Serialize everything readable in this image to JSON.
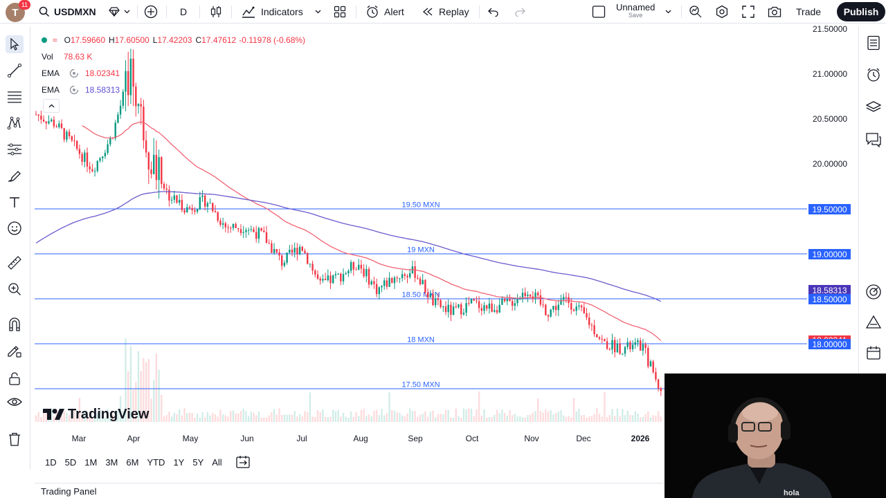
{
  "topbar": {
    "avatar_letter": "T",
    "notification_count": "11",
    "symbol": "USDMXN",
    "interval": "D",
    "indicators_label": "Indicators",
    "alert_label": "Alert",
    "replay_label": "Replay",
    "layout_name": "Unnamed",
    "save_label": "Save",
    "trade_label": "Trade",
    "publish_label": "Publish"
  },
  "legend": {
    "o_label": "O",
    "o": "17.59660",
    "h_label": "H",
    "h": "17.60500",
    "l_label": "L",
    "l": "17.42203",
    "c_label": "C",
    "c": "17.47612",
    "change": "-0.11978 (-0.68%)",
    "vol_label": "Vol",
    "vol": "78.63 K",
    "ema1_label": "EMA",
    "ema1": "18.02341",
    "ema2_label": "EMA",
    "ema2": "18.58313"
  },
  "price_axis": {
    "ticks": [
      "21.50000",
      "21.00000",
      "20.50000",
      "20.00000"
    ],
    "labels": [
      {
        "text": "19.50000",
        "color": "#2962ff"
      },
      {
        "text": "19.00000",
        "color": "#2962ff"
      },
      {
        "text": "18.58313",
        "color": "#4a35b8"
      },
      {
        "text": "18.50000",
        "color": "#2962ff"
      },
      {
        "text": "18.02341",
        "color": "#f23645"
      },
      {
        "text": "18.00000",
        "color": "#2962ff"
      }
    ]
  },
  "levels": [
    {
      "price": 19.5,
      "text": "19.50 MXN"
    },
    {
      "price": 19.0,
      "text": "19 MXN"
    },
    {
      "price": 18.5,
      "text": "18.50 MXN"
    },
    {
      "price": 18.0,
      "text": "18 MXN"
    },
    {
      "price": 17.5,
      "text": "17.50 MXN"
    }
  ],
  "time_axis": [
    "Mar",
    "Apr",
    "May",
    "Jun",
    "Jul",
    "Aug",
    "Sep",
    "Oct",
    "Nov",
    "Dec",
    "2026"
  ],
  "ranges": [
    "1D",
    "5D",
    "1M",
    "3M",
    "6M",
    "YTD",
    "1Y",
    "5Y",
    "All"
  ],
  "brand": "TradingView",
  "trading_panel_label": "Trading Panel",
  "colors": {
    "up": "#089981",
    "down": "#f23645",
    "ema_fast": "#f06374",
    "ema_slow": "#6a5acd",
    "level": "#2962ff"
  },
  "chart_data": {
    "type": "candlestick",
    "symbol": "USDMXN",
    "interval": "D",
    "title": "",
    "ylim": [
      17.3,
      21.6
    ],
    "xlabel": "",
    "ylabel": "",
    "close_path": [
      {
        "x": "Feb",
        "y": 20.55
      },
      {
        "x": "Mar",
        "y": 20.45
      },
      {
        "x": "Mar-mid",
        "y": 20.2
      },
      {
        "x": "Mar-late",
        "y": 19.95
      },
      {
        "x": "Apr",
        "y": 20.3
      },
      {
        "x": "Apr-peak",
        "y": 21.05
      },
      {
        "x": "Apr-mid",
        "y": 20.1
      },
      {
        "x": "Apr-late",
        "y": 19.65
      },
      {
        "x": "May",
        "y": 19.5
      },
      {
        "x": "May-mid",
        "y": 19.6
      },
      {
        "x": "May-late",
        "y": 19.3
      },
      {
        "x": "Jun",
        "y": 19.3
      },
      {
        "x": "Jun-mid",
        "y": 19.2
      },
      {
        "x": "Jun-late",
        "y": 18.9
      },
      {
        "x": "Jul",
        "y": 19.1
      },
      {
        "x": "Jul-mid",
        "y": 18.65
      },
      {
        "x": "Jul-late",
        "y": 18.75
      },
      {
        "x": "Aug",
        "y": 18.9
      },
      {
        "x": "Aug-mid",
        "y": 18.6
      },
      {
        "x": "Aug-late",
        "y": 18.75
      },
      {
        "x": "Sep",
        "y": 18.8
      },
      {
        "x": "Sep-mid",
        "y": 18.45
      },
      {
        "x": "Sep-late",
        "y": 18.35
      },
      {
        "x": "Oct",
        "y": 18.45
      },
      {
        "x": "Oct-mid",
        "y": 18.4
      },
      {
        "x": "Oct-late",
        "y": 18.45
      },
      {
        "x": "Nov",
        "y": 18.6
      },
      {
        "x": "Nov-mid",
        "y": 18.35
      },
      {
        "x": "Nov-late",
        "y": 18.5
      },
      {
        "x": "Dec",
        "y": 18.3
      },
      {
        "x": "Dec-mid",
        "y": 18.0
      },
      {
        "x": "Dec-late",
        "y": 17.95
      },
      {
        "x": "2026",
        "y": 17.98
      },
      {
        "x": "2026-mid",
        "y": 17.48
      }
    ],
    "series": [
      {
        "name": "EMA",
        "last": 18.02341
      },
      {
        "name": "EMA",
        "last": 18.58313
      }
    ]
  }
}
